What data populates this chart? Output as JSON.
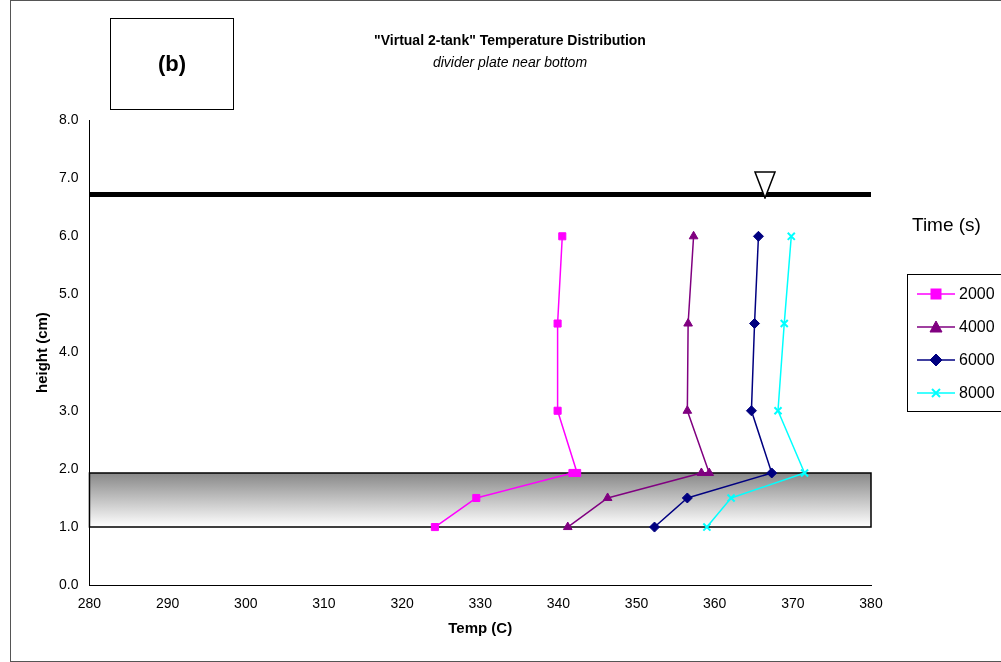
{
  "chart_data": {
    "type": "line",
    "title": "\"Virtual 2-tank\" Temperature Distribution",
    "subtitle": "divider plate near bottom",
    "xlabel": "Temp (C)",
    "ylabel": "height (cm)",
    "legend_title": "Time (s)",
    "legend": "right",
    "grid": false,
    "series": [
      {
        "name": "2000",
        "color": "#ff00ff",
        "marker": "square",
        "x": [
          324.2,
          329.5,
          341.8,
          342.4,
          339.9,
          339.9,
          340.5
        ],
        "values": [
          1.0,
          1.5,
          1.93,
          1.93,
          3.0,
          4.5,
          6.0
        ]
      },
      {
        "name": "4000",
        "color": "#800080",
        "marker": "triangle",
        "x": [
          341.2,
          346.3,
          358.3,
          359.3,
          356.5,
          356.6,
          357.3
        ],
        "values": [
          1.0,
          1.5,
          1.93,
          1.93,
          3.0,
          4.5,
          6.0
        ]
      },
      {
        "name": "6000",
        "color": "#000080",
        "marker": "diamond",
        "x": [
          352.3,
          356.5,
          367.3,
          364.7,
          365.1,
          365.6
        ],
        "values": [
          1.0,
          1.5,
          1.93,
          3.0,
          4.5,
          6.0
        ]
      },
      {
        "name": "8000",
        "color": "#00ffff",
        "marker": "cross",
        "x": [
          359.0,
          362.1,
          371.5,
          368.1,
          368.9,
          369.8
        ],
        "values": [
          1.0,
          1.5,
          1.93,
          3.0,
          4.5,
          6.0
        ]
      }
    ],
    "xlim": [
      280,
      380
    ],
    "xticks": [
      280,
      290,
      300,
      310,
      320,
      330,
      340,
      350,
      360,
      370,
      380
    ],
    "ylim": [
      0,
      8
    ],
    "yticks": [
      {
        "value": 0,
        "label": "0.0"
      },
      {
        "value": 1,
        "label": "1.0"
      },
      {
        "value": 2,
        "label": "2.0"
      },
      {
        "value": 3,
        "label": "3.0"
      },
      {
        "value": 4,
        "label": "4.0"
      },
      {
        "value": 5,
        "label": "5.0"
      },
      {
        "value": 6,
        "label": "6.0"
      },
      {
        "value": 7,
        "label": "7.0"
      },
      {
        "value": 8,
        "label": "8.0"
      }
    ],
    "ref_lines": [
      {
        "axis": "y",
        "value": 6.72,
        "color": "#000000"
      }
    ],
    "bands": [
      {
        "axis": "y",
        "from": 1.0,
        "to": 1.93,
        "color": "#888888"
      }
    ],
    "annotations": [
      "(b)"
    ]
  }
}
